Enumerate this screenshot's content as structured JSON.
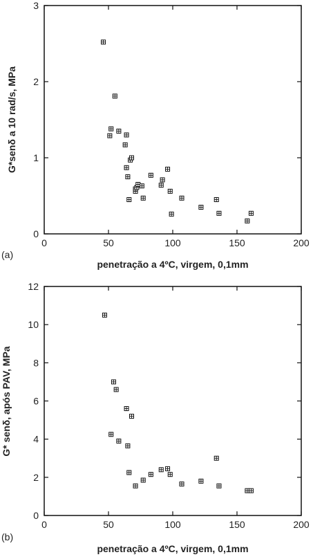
{
  "chart_data": [
    {
      "type": "scatter",
      "panel_label": "(a)",
      "xlabel": "penetração a 4ºC, virgem, 0,1mm",
      "ylabel": "G*senδ a 10 rad/s, MPa",
      "xlim": [
        0,
        200
      ],
      "ylim": [
        0,
        3
      ],
      "x_ticks": [
        "0",
        "50",
        "100",
        "150",
        "200"
      ],
      "y_ticks": [
        "0",
        "1",
        "2",
        "3"
      ],
      "marker": "square-with-cross",
      "grid": false,
      "points": [
        {
          "x": 46,
          "y": 2.52
        },
        {
          "x": 51,
          "y": 1.29
        },
        {
          "x": 52,
          "y": 1.38
        },
        {
          "x": 55,
          "y": 1.81
        },
        {
          "x": 58,
          "y": 1.35
        },
        {
          "x": 63,
          "y": 1.17
        },
        {
          "x": 64,
          "y": 1.3
        },
        {
          "x": 64,
          "y": 0.87
        },
        {
          "x": 65,
          "y": 0.75
        },
        {
          "x": 66,
          "y": 0.45
        },
        {
          "x": 67,
          "y": 0.97
        },
        {
          "x": 68,
          "y": 1.0
        },
        {
          "x": 71,
          "y": 0.56
        },
        {
          "x": 71,
          "y": 0.59
        },
        {
          "x": 72,
          "y": 0.61
        },
        {
          "x": 73,
          "y": 0.65
        },
        {
          "x": 76,
          "y": 0.63
        },
        {
          "x": 77,
          "y": 0.47
        },
        {
          "x": 83,
          "y": 0.77
        },
        {
          "x": 91,
          "y": 0.64
        },
        {
          "x": 92,
          "y": 0.71
        },
        {
          "x": 96,
          "y": 0.85
        },
        {
          "x": 98,
          "y": 0.56
        },
        {
          "x": 99,
          "y": 0.26
        },
        {
          "x": 107,
          "y": 0.47
        },
        {
          "x": 122,
          "y": 0.35
        },
        {
          "x": 134,
          "y": 0.45
        },
        {
          "x": 136,
          "y": 0.27
        },
        {
          "x": 158,
          "y": 0.17
        },
        {
          "x": 161,
          "y": 0.27
        }
      ]
    },
    {
      "type": "scatter",
      "panel_label": "(b)",
      "xlabel": "penetração a 4ºC, virgem, 0,1mm",
      "ylabel": "G* senδ, após PAV, MPa",
      "xlim": [
        0,
        200
      ],
      "ylim": [
        0,
        12
      ],
      "x_ticks": [
        "0",
        "50",
        "100",
        "150",
        "200"
      ],
      "y_ticks": [
        "0",
        "2",
        "4",
        "6",
        "8",
        "10",
        "12"
      ],
      "marker": "square-with-cross",
      "grid": false,
      "points": [
        {
          "x": 47,
          "y": 10.5
        },
        {
          "x": 52,
          "y": 4.25
        },
        {
          "x": 54,
          "y": 7.0
        },
        {
          "x": 56,
          "y": 6.6
        },
        {
          "x": 58,
          "y": 3.9
        },
        {
          "x": 64,
          "y": 5.6
        },
        {
          "x": 65,
          "y": 3.65
        },
        {
          "x": 66,
          "y": 2.25
        },
        {
          "x": 68,
          "y": 5.2
        },
        {
          "x": 71,
          "y": 1.55
        },
        {
          "x": 77,
          "y": 1.85
        },
        {
          "x": 83,
          "y": 2.15
        },
        {
          "x": 91,
          "y": 2.4
        },
        {
          "x": 96,
          "y": 2.45
        },
        {
          "x": 98,
          "y": 2.15
        },
        {
          "x": 107,
          "y": 1.65
        },
        {
          "x": 122,
          "y": 1.8
        },
        {
          "x": 134,
          "y": 3.0
        },
        {
          "x": 136,
          "y": 1.55
        },
        {
          "x": 158,
          "y": 1.3
        },
        {
          "x": 161,
          "y": 1.3
        }
      ]
    }
  ]
}
